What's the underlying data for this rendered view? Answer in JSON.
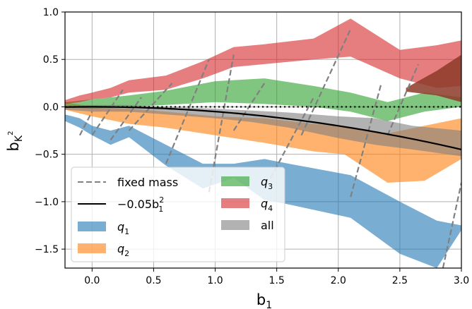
{
  "chart_data": {
    "type": "area",
    "title": "",
    "xlabel": "b",
    "xlabel_sub": "1",
    "ylabel": "b",
    "ylabel_sub": "K",
    "ylabel_sup": "2",
    "xlim": [
      -0.22,
      3.0
    ],
    "ylim": [
      -1.7,
      1.0
    ],
    "xticks": [
      0.0,
      0.5,
      1.0,
      1.5,
      2.0,
      2.5,
      3.0
    ],
    "xtick_labels": [
      "0.0",
      "0.5",
      "1.0",
      "1.5",
      "2.0",
      "2.5",
      "3.0"
    ],
    "yticks": [
      1.0,
      0.5,
      0.0,
      -0.5,
      -1.0,
      -1.5
    ],
    "ytick_labels": [
      "1.0",
      "0.5",
      "0.0",
      "−0.5",
      "−1.0",
      "−1.5"
    ],
    "grid": true,
    "legend_position": "lower-left",
    "zero_line": {
      "y": 0,
      "style": "dotted",
      "color": "#000000"
    },
    "bands": [
      {
        "name": "q1",
        "label": "q",
        "sub": "1",
        "color": "#1f77b4",
        "alpha": 0.6,
        "x": [
          -0.22,
          -0.1,
          0.0,
          0.15,
          0.3,
          0.6,
          0.9,
          1.15,
          1.4,
          1.6,
          2.1,
          2.5,
          2.8,
          3.0
        ],
        "upper": [
          -0.08,
          -0.12,
          -0.2,
          -0.25,
          -0.2,
          -0.4,
          -0.6,
          -0.6,
          -0.55,
          -0.6,
          -0.72,
          -1.0,
          -1.2,
          -1.25
        ],
        "lower": [
          -0.15,
          -0.22,
          -0.3,
          -0.4,
          -0.32,
          -0.62,
          -0.86,
          -0.75,
          -0.98,
          -1.03,
          -1.17,
          -1.55,
          -1.7,
          -1.3
        ]
      },
      {
        "name": "q2",
        "label": "q",
        "sub": "2",
        "color": "#ff7f0e",
        "alpha": 0.6,
        "x": [
          -0.22,
          0.0,
          0.3,
          0.6,
          1.0,
          1.4,
          1.8,
          2.05,
          2.4,
          2.7,
          3.0
        ],
        "upper": [
          0.05,
          0.0,
          -0.02,
          -0.05,
          -0.1,
          -0.12,
          -0.18,
          -0.2,
          -0.28,
          -0.2,
          -0.12
        ],
        "lower": [
          -0.03,
          -0.1,
          -0.18,
          -0.22,
          -0.3,
          -0.38,
          -0.47,
          -0.5,
          -0.8,
          -0.78,
          -0.55
        ]
      },
      {
        "name": "q3",
        "label": "q",
        "sub": "3",
        "color": "#2ca02c",
        "alpha": 0.6,
        "x": [
          -0.22,
          0.0,
          0.3,
          0.6,
          1.0,
          1.4,
          1.8,
          2.1,
          2.4,
          2.7,
          3.0
        ],
        "upper": [
          0.05,
          0.08,
          0.12,
          0.17,
          0.27,
          0.3,
          0.22,
          0.15,
          0.05,
          0.15,
          0.1
        ],
        "lower": [
          0.0,
          -0.02,
          0.0,
          0.02,
          0.05,
          0.03,
          0.0,
          -0.05,
          -0.15,
          -0.05,
          0.0
        ]
      },
      {
        "name": "q4",
        "label": "q",
        "sub": "4",
        "color": "#d62728",
        "alpha": 0.6,
        "x": [
          -0.22,
          -0.1,
          0.0,
          0.15,
          0.3,
          0.6,
          0.9,
          1.15,
          1.4,
          1.8,
          2.1,
          2.5,
          2.8,
          3.0
        ],
        "upper": [
          0.07,
          0.12,
          0.15,
          0.2,
          0.28,
          0.33,
          0.48,
          0.63,
          0.66,
          0.72,
          0.93,
          0.6,
          0.65,
          0.7
        ],
        "lower": [
          0.03,
          0.05,
          0.08,
          0.1,
          0.15,
          0.18,
          0.3,
          0.42,
          0.45,
          0.5,
          0.53,
          0.3,
          0.2,
          0.22
        ]
      },
      {
        "name": "all",
        "label": "all",
        "sub": "",
        "color": "#7f7f7f",
        "alpha": 0.6,
        "x": [
          -0.22,
          0.0,
          0.3,
          0.6,
          1.0,
          1.3,
          1.6,
          2.0,
          2.3,
          2.6,
          3.0
        ],
        "upper": [
          0.02,
          0.02,
          0.02,
          0.0,
          -0.02,
          -0.04,
          -0.06,
          -0.1,
          -0.12,
          -0.2,
          -0.25
        ],
        "lower": [
          -0.03,
          -0.05,
          -0.05,
          -0.08,
          -0.12,
          -0.16,
          -0.22,
          -0.33,
          -0.4,
          -0.45,
          -0.52
        ]
      },
      {
        "name": "q4_q3_overlap_brown",
        "label": "",
        "sub": "",
        "color": "#8c3a28",
        "alpha": 0.85,
        "x": [
          2.55,
          2.8,
          3.0
        ],
        "upper": [
          0.2,
          0.38,
          0.55
        ],
        "lower": [
          0.16,
          0.12,
          0.05
        ]
      }
    ],
    "fit_curve": {
      "label": "−0.05b",
      "label_sub": "1",
      "label_sup": "2",
      "coefficient": -0.05,
      "color": "#000000"
    },
    "fixed_mass_label": "fixed mass",
    "fixed_mass_color": "#808080",
    "fixed_mass_segments": [
      {
        "x": [
          -0.1,
          0.0
        ],
        "y": [
          -0.3,
          -0.05
        ]
      },
      {
        "x": [
          0.0,
          0.25
        ],
        "y": [
          -0.3,
          0.18
        ]
      },
      {
        "x": [
          0.15,
          0.4
        ],
        "y": [
          -0.35,
          0.1
        ]
      },
      {
        "x": [
          0.3,
          0.65
        ],
        "y": [
          -0.25,
          0.25
        ]
      },
      {
        "x": [
          0.6,
          0.95
        ],
        "y": [
          -0.6,
          0.5
        ]
      },
      {
        "x": [
          0.95,
          1.15
        ],
        "y": [
          -0.9,
          0.55
        ]
      },
      {
        "x": [
          1.15,
          1.4
        ],
        "y": [
          -0.25,
          0.25
        ]
      },
      {
        "x": [
          1.45,
          1.8
        ],
        "y": [
          -0.75,
          0.1
        ]
      },
      {
        "x": [
          1.7,
          2.1
        ],
        "y": [
          -0.3,
          0.82
        ]
      },
      {
        "x": [
          2.1,
          2.35
        ],
        "y": [
          -0.95,
          0.25
        ]
      },
      {
        "x": [
          2.4,
          2.65
        ],
        "y": [
          -0.3,
          0.45
        ]
      },
      {
        "x": [
          2.85,
          3.0
        ],
        "y": [
          -1.7,
          -0.8
        ]
      }
    ]
  }
}
